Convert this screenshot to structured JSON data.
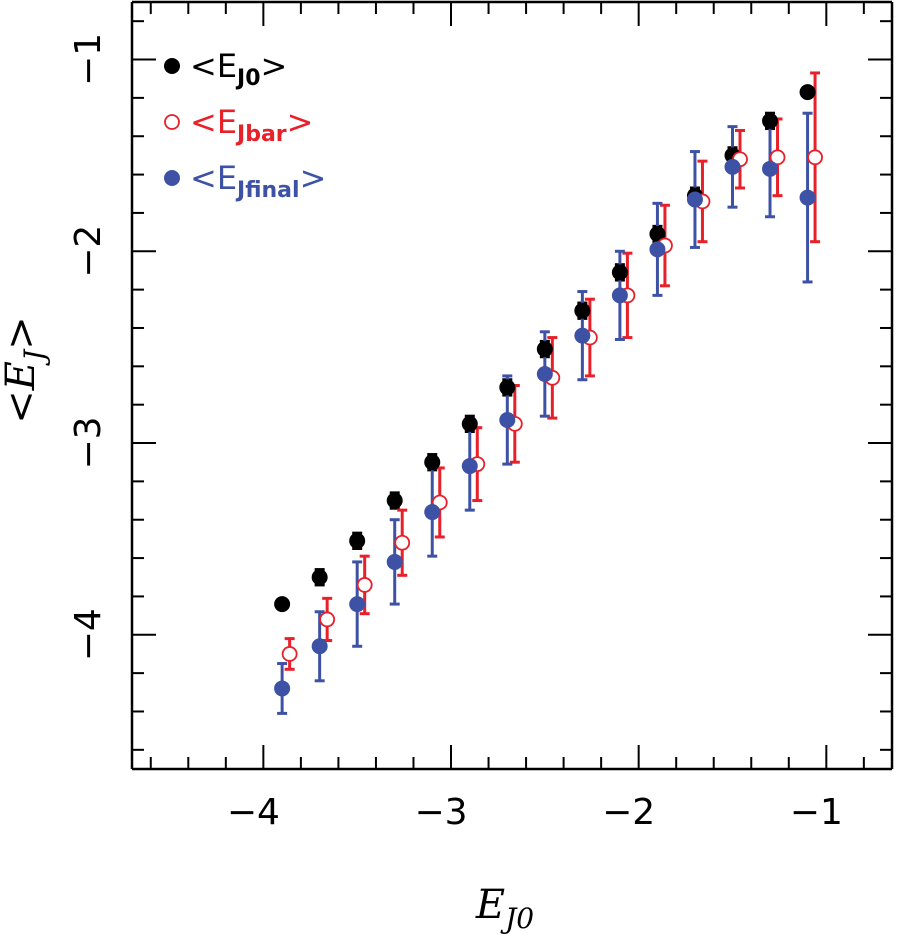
{
  "chart_data": {
    "type": "scatter",
    "xlabel": "E",
    "xlabel_sub": "J0",
    "ylabel": "<E",
    "ylabel_sub": "J",
    "ylabel_close": ">",
    "xlim": [
      -4.7,
      -0.65
    ],
    "ylim": [
      -4.7,
      -0.7
    ],
    "xticks": [
      -4,
      -3,
      -2,
      -1
    ],
    "yticks": [
      -4,
      -3,
      -2,
      -1
    ],
    "xtick_labels": [
      "−4",
      "−3",
      "−2",
      "−1"
    ],
    "ytick_labels": [
      "−4",
      "−3",
      "−2",
      "−1"
    ],
    "minor_step": 0.2,
    "grid": false,
    "legend_position": "top-left",
    "series": [
      {
        "name": "<E",
        "name_sub": "J0",
        "name_close": ">",
        "marker": "filled-circle",
        "color": "#000000",
        "points": [
          {
            "x": -3.9,
            "y": -3.84,
            "err": 0.0
          },
          {
            "x": -3.7,
            "y": -3.7,
            "err": 0.04
          },
          {
            "x": -3.5,
            "y": -3.51,
            "err": 0.04
          },
          {
            "x": -3.3,
            "y": -3.3,
            "err": 0.04
          },
          {
            "x": -3.1,
            "y": -3.1,
            "err": 0.04
          },
          {
            "x": -2.9,
            "y": -2.9,
            "err": 0.04
          },
          {
            "x": -2.7,
            "y": -2.71,
            "err": 0.04
          },
          {
            "x": -2.5,
            "y": -2.51,
            "err": 0.04
          },
          {
            "x": -2.3,
            "y": -2.31,
            "err": 0.04
          },
          {
            "x": -2.1,
            "y": -2.11,
            "err": 0.04
          },
          {
            "x": -1.9,
            "y": -1.91,
            "err": 0.04
          },
          {
            "x": -1.7,
            "y": -1.71,
            "err": 0.04
          },
          {
            "x": -1.5,
            "y": -1.5,
            "err": 0.04
          },
          {
            "x": -1.3,
            "y": -1.32,
            "err": 0.04
          },
          {
            "x": -1.1,
            "y": -1.17,
            "err": 0.0
          }
        ]
      },
      {
        "name": "<E",
        "name_sub": "Jbar",
        "name_close": ">",
        "marker": "open-circle",
        "color": "#e8202a",
        "points": [
          {
            "x": -3.86,
            "y": -4.1,
            "err": 0.08
          },
          {
            "x": -3.66,
            "y": -3.92,
            "err": 0.11
          },
          {
            "x": -3.46,
            "y": -3.74,
            "err": 0.15
          },
          {
            "x": -3.26,
            "y": -3.52,
            "err": 0.17
          },
          {
            "x": -3.06,
            "y": -3.31,
            "err": 0.18
          },
          {
            "x": -2.86,
            "y": -3.11,
            "err": 0.19
          },
          {
            "x": -2.66,
            "y": -2.9,
            "err": 0.2
          },
          {
            "x": -2.46,
            "y": -2.66,
            "err": 0.21
          },
          {
            "x": -2.26,
            "y": -2.45,
            "err": 0.2
          },
          {
            "x": -2.06,
            "y": -2.23,
            "err": 0.22
          },
          {
            "x": -1.86,
            "y": -1.97,
            "err": 0.21
          },
          {
            "x": -1.66,
            "y": -1.74,
            "err": 0.21
          },
          {
            "x": -1.46,
            "y": -1.52,
            "err": 0.15
          },
          {
            "x": -1.26,
            "y": -1.51,
            "err": 0.2
          },
          {
            "x": -1.06,
            "y": -1.51,
            "err": 0.44
          }
        ]
      },
      {
        "name": "<E",
        "name_sub": "Jfinal",
        "name_close": ">",
        "marker": "filled-circle",
        "color": "#3d52a4",
        "points": [
          {
            "x": -3.9,
            "y": -4.28,
            "err": 0.13
          },
          {
            "x": -3.7,
            "y": -4.06,
            "err": 0.18
          },
          {
            "x": -3.5,
            "y": -3.84,
            "err": 0.22
          },
          {
            "x": -3.3,
            "y": -3.62,
            "err": 0.22
          },
          {
            "x": -3.1,
            "y": -3.36,
            "err": 0.23
          },
          {
            "x": -2.9,
            "y": -3.12,
            "err": 0.23
          },
          {
            "x": -2.7,
            "y": -2.88,
            "err": 0.23
          },
          {
            "x": -2.5,
            "y": -2.64,
            "err": 0.22
          },
          {
            "x": -2.3,
            "y": -2.44,
            "err": 0.23
          },
          {
            "x": -2.1,
            "y": -2.23,
            "err": 0.23
          },
          {
            "x": -1.9,
            "y": -1.99,
            "err": 0.24
          },
          {
            "x": -1.7,
            "y": -1.73,
            "err": 0.25
          },
          {
            "x": -1.5,
            "y": -1.56,
            "err": 0.21
          },
          {
            "x": -1.3,
            "y": -1.57,
            "err": 0.25
          },
          {
            "x": -1.1,
            "y": -1.72,
            "err": 0.44
          }
        ]
      }
    ]
  }
}
